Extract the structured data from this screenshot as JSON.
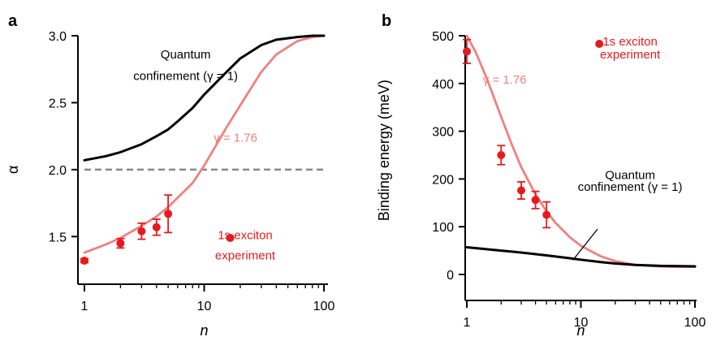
{
  "colors": {
    "model": "#f08080",
    "experiment": "#e8191c",
    "qc": "#000000",
    "dashed": "#888888",
    "axis": "#000000"
  },
  "chart_data": [
    {
      "panel": "a",
      "type": "line",
      "xscale": "log",
      "xlim": [
        1,
        100
      ],
      "ylim": [
        1.25,
        3.0
      ],
      "xlabel": "n",
      "ylabel": "α",
      "xticks": [
        "1",
        "10",
        "100"
      ],
      "yticks": [
        "1.5",
        "2.0",
        "2.5",
        "3.0"
      ],
      "reference_line": {
        "y": 2.0,
        "style": "dashed"
      },
      "series": [
        {
          "kind": "curve",
          "role": "model",
          "x": [
            1,
            1.5,
            2,
            3,
            4,
            5,
            6,
            8,
            10,
            15,
            20,
            30,
            40,
            60,
            80,
            100
          ],
          "y": [
            1.38,
            1.44,
            1.49,
            1.58,
            1.65,
            1.72,
            1.79,
            1.9,
            2.03,
            2.3,
            2.48,
            2.73,
            2.86,
            2.96,
            2.99,
            3.0
          ]
        },
        {
          "kind": "curve",
          "role": "qc",
          "x": [
            1,
            1.5,
            2,
            3,
            4,
            5,
            6,
            8,
            10,
            15,
            20,
            30,
            40,
            60,
            80,
            100
          ],
          "y": [
            2.07,
            2.1,
            2.13,
            2.19,
            2.25,
            2.3,
            2.36,
            2.46,
            2.56,
            2.72,
            2.83,
            2.93,
            2.97,
            2.99,
            3.0,
            3.0
          ]
        },
        {
          "kind": "points",
          "role": "experiment",
          "x": [
            1,
            2,
            3,
            4,
            5
          ],
          "y": [
            1.32,
            1.45,
            1.54,
            1.57,
            1.67
          ],
          "err": [
            0.015,
            0.035,
            0.06,
            0.06,
            0.14
          ]
        }
      ],
      "annotations": [
        {
          "id": "qc1",
          "text": "Quantum",
          "x": 7,
          "y": 2.83,
          "anchor": "middle",
          "color": "qc"
        },
        {
          "id": "qc2",
          "text": "confinement (γ = 1)",
          "x": 7,
          "y": 2.67,
          "anchor": "middle",
          "color": "qc"
        },
        {
          "id": "gamma",
          "text": "γ = 1.76",
          "x": 12.0,
          "y": 2.21,
          "anchor": "start",
          "color": "model"
        },
        {
          "id": "legend1",
          "text": "1s  exciton",
          "x": 22,
          "y": 1.48,
          "anchor": "middle",
          "color": "experiment"
        },
        {
          "id": "legend2",
          "text": "experiment",
          "x": 22,
          "y": 1.33,
          "anchor": "middle",
          "color": "experiment"
        }
      ],
      "legend_marker": {
        "x": 16.5,
        "y": 1.49
      }
    },
    {
      "panel": "b",
      "type": "line",
      "xscale": "log",
      "xlim": [
        1,
        100
      ],
      "ylim": [
        0,
        500
      ],
      "xlabel": "n",
      "ylabel": "Binding energy (meV)",
      "xticks": [
        "1",
        "10",
        "100"
      ],
      "yticks": [
        "0",
        "100",
        "200",
        "300",
        "400",
        "500"
      ],
      "series": [
        {
          "kind": "curve",
          "role": "model",
          "x": [
            1,
            1.2,
            1.5,
            2,
            2.5,
            3,
            4,
            5,
            6,
            8,
            10,
            15,
            20,
            30,
            40,
            60,
            80,
            100
          ],
          "y": [
            500,
            465,
            410,
            330,
            270,
            225,
            168,
            132,
            108,
            78,
            60,
            38,
            28,
            20,
            18,
            16,
            16,
            16
          ]
        },
        {
          "kind": "curve",
          "role": "qc",
          "x": [
            1,
            2,
            3,
            5,
            8,
            10,
            15,
            20,
            30,
            50,
            100
          ],
          "y": [
            57,
            50,
            46,
            40,
            34,
            31,
            26,
            23,
            20,
            18,
            17
          ]
        },
        {
          "kind": "points",
          "role": "experiment",
          "x": [
            1,
            2,
            3,
            4,
            5
          ],
          "y": [
            467,
            250,
            176,
            156,
            125
          ],
          "err": [
            25,
            20,
            18,
            18,
            27
          ]
        }
      ],
      "annotations": [
        {
          "id": "legend1",
          "text": "1s exciton",
          "x": 27,
          "y": 480,
          "anchor": "middle",
          "color": "experiment"
        },
        {
          "id": "legend2",
          "text": "experiment",
          "x": 27,
          "y": 452,
          "anchor": "middle",
          "color": "experiment"
        },
        {
          "id": "gamma",
          "text": "γ = 1.76",
          "x": 2.15,
          "y": 400,
          "anchor": "middle",
          "color": "model"
        },
        {
          "id": "qc1",
          "text": "Quantum",
          "x": 27,
          "y": 200,
          "anchor": "middle",
          "color": "qc"
        },
        {
          "id": "qc2",
          "text": "confinement (γ = 1)",
          "x": 27,
          "y": 175,
          "anchor": "middle",
          "color": "qc"
        }
      ],
      "legend_marker": {
        "x": 14.5,
        "y": 483
      }
    }
  ]
}
